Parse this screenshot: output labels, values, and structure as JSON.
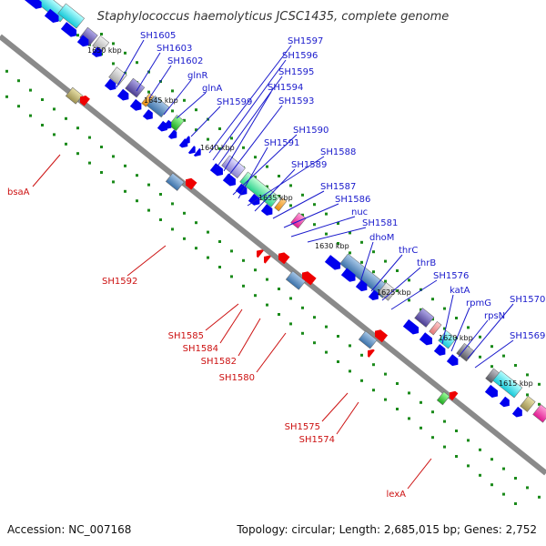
{
  "title": "Staphylococcus haemolyticus JCSC1435, complete genome",
  "footer": {
    "accession": "Accession: NC_007168",
    "topology": "Topology: circular; Length: 2,685,015 bp; Genes: 2,752"
  },
  "kbp_labels": [
    "1650 kbp",
    "1645 kbp",
    "1640 kbp",
    "1635 kbp",
    "1630 kbp",
    "1625 kbp",
    "1620 kbp",
    "1615 kbp"
  ],
  "labels_top": [
    "SH1605",
    "SH1603",
    "SH1602",
    "glnR",
    "glnA",
    "SH1599",
    "SH1597",
    "SH1596",
    "SH1595",
    "SH1594",
    "SH1593",
    "SH1590",
    "SH1591",
    "SH1588",
    "SH1589",
    "SH1587",
    "SH1586",
    "nuc",
    "SH1581",
    "dhoM",
    "thrC",
    "thrB",
    "SH1576",
    "katA",
    "rpmG",
    "rpsN",
    "SH1570",
    "SH1569"
  ],
  "labels_bottom": [
    "bsaA",
    "SH1592",
    "SH1585",
    "SH1584",
    "SH1582",
    "SH1580",
    "SH1575",
    "SH1574",
    "lexA"
  ],
  "colors": {
    "backbone": "#8a8a8a",
    "gene_forward": "#0000ee",
    "gene_reverse": "#ee0000",
    "tick": "#1a8a1a",
    "label_top": "#1a1acc",
    "label_bottom": "#cc1111"
  }
}
